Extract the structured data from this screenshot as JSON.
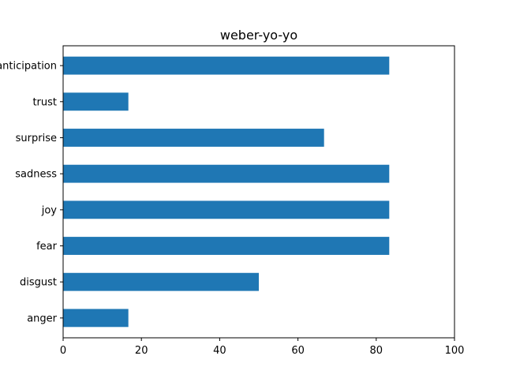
{
  "chart_data": {
    "type": "bar",
    "orientation": "horizontal",
    "title": "weber-yo-yo",
    "xlabel": "",
    "ylabel": "",
    "categories": [
      "anger",
      "disgust",
      "fear",
      "joy",
      "sadness",
      "surprise",
      "trust",
      "anticipation"
    ],
    "values": [
      16.67,
      50.0,
      83.33,
      83.33,
      83.33,
      66.67,
      16.67,
      83.33
    ],
    "xlim": [
      0,
      100
    ],
    "xticks": [
      0,
      20,
      40,
      60,
      80,
      100
    ],
    "grid": false,
    "legend": "none",
    "bar_color": "#1f77b4"
  }
}
